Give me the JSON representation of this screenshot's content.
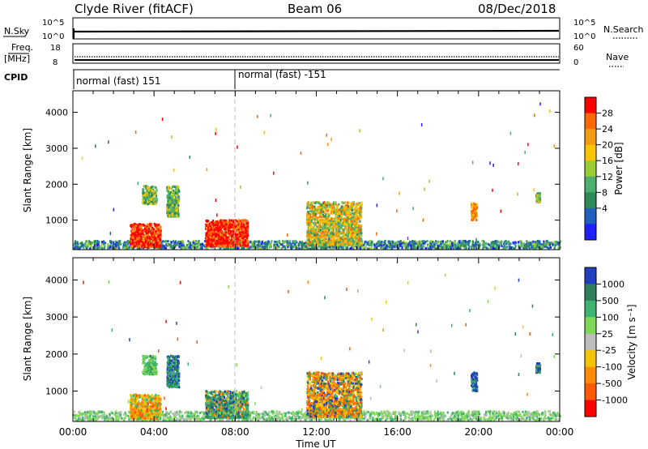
{
  "header": {
    "station": "Clyde River (fitACF)",
    "beam": "Beam 06",
    "date": "08/Dec/2018"
  },
  "summary": {
    "nsky_label": "N.Sky",
    "nsky_ticks": [
      "10^5",
      "10^0"
    ],
    "nsearch_label": "N.Search",
    "nsearch_ticks": [
      "10^5",
      "10^0"
    ],
    "freq_label_1": "Freq.",
    "freq_label_2": "[MHz]",
    "freq_ticks": [
      "18",
      "8"
    ],
    "nave_label": "Nave",
    "nave_ticks": [
      "60",
      "0"
    ],
    "cpid_label": "CPID",
    "cpid_segments": [
      "normal (fast) 151",
      "normal (fast) -151"
    ],
    "cpid_switch_time": "08:00"
  },
  "axes": {
    "ylabel": "Slant Range [km]",
    "xlabel": "Time UT",
    "yticks": [
      "4000",
      "3000",
      "2000",
      "1000"
    ],
    "xticks": [
      "00:00",
      "04:00",
      "08:00",
      "12:00",
      "16:00",
      "20:00",
      "00:00"
    ]
  },
  "colorbars": {
    "power_label": "Power [dB]",
    "power_ticks": [
      "28",
      "24",
      "20",
      "16",
      "12",
      "8",
      "4"
    ],
    "power_colors": [
      "#ff0000",
      "#ff6a00",
      "#f39c12",
      "#f7c600",
      "#9acd32",
      "#4caf6e",
      "#2e8b57",
      "#1e5fbf",
      "#1f1fff"
    ],
    "velocity_label": "Velocity [m s⁻¹]",
    "velocity_ticks": [
      "1000",
      "500",
      "100",
      "25",
      "-25",
      "-100",
      "-500",
      "-1000"
    ],
    "velocity_colors": [
      "#1f3fbf",
      "#2e7d5b",
      "#3cb371",
      "#7ed957",
      "#bdbdbd",
      "#f5c400",
      "#ff8c00",
      "#ff5a00",
      "#ff0000"
    ]
  },
  "chart_data": [
    {
      "type": "heatmap",
      "title": "",
      "xlabel": "Time UT",
      "ylabel": "Slant Range [km]",
      "zlabel": "Power [dB]",
      "xlim": [
        0,
        24
      ],
      "ylim": [
        180,
        4600
      ],
      "clusters": [
        {
          "t": [
            0.0,
            24.0
          ],
          "r": [
            200,
            420
          ],
          "level": "blue-green"
        },
        {
          "t": [
            2.8,
            4.3
          ],
          "r": [
            250,
            900
          ],
          "level": "red"
        },
        {
          "t": [
            6.5,
            8.6
          ],
          "r": [
            280,
            1000
          ],
          "level": "red"
        },
        {
          "t": [
            4.6,
            5.2
          ],
          "r": [
            1100,
            1950
          ],
          "level": "green"
        },
        {
          "t": [
            3.4,
            4.1
          ],
          "r": [
            1450,
            1950
          ],
          "level": "green"
        },
        {
          "t": [
            11.5,
            14.2
          ],
          "r": [
            300,
            1500
          ],
          "level": "orange-green"
        },
        {
          "t": [
            19.6,
            19.9
          ],
          "r": [
            1000,
            1500
          ],
          "level": "orange"
        },
        {
          "t": [
            22.8,
            23.0
          ],
          "r": [
            1500,
            1750
          ],
          "level": "green"
        }
      ]
    },
    {
      "type": "heatmap",
      "title": "",
      "xlabel": "Time UT",
      "ylabel": "Slant Range [km]",
      "zlabel": "Velocity [m s⁻¹]",
      "xlim": [
        0,
        24
      ],
      "ylim": [
        180,
        4600
      ],
      "clusters": [
        {
          "t": [
            0.0,
            24.0
          ],
          "r": [
            200,
            450
          ],
          "level": "green-gray"
        },
        {
          "t": [
            2.8,
            4.3
          ],
          "r": [
            250,
            900
          ],
          "level": "orange"
        },
        {
          "t": [
            6.5,
            8.6
          ],
          "r": [
            280,
            1000
          ],
          "level": "green-blue"
        },
        {
          "t": [
            4.6,
            5.2
          ],
          "r": [
            1100,
            1950
          ],
          "level": "blue-green"
        },
        {
          "t": [
            3.4,
            4.1
          ],
          "r": [
            1450,
            1950
          ],
          "level": "green"
        },
        {
          "t": [
            11.5,
            14.2
          ],
          "r": [
            300,
            1500
          ],
          "level": "orange-blue"
        },
        {
          "t": [
            19.6,
            19.9
          ],
          "r": [
            1000,
            1500
          ],
          "level": "blue"
        },
        {
          "t": [
            22.8,
            23.0
          ],
          "r": [
            1500,
            1750
          ],
          "level": "blue"
        }
      ]
    }
  ]
}
